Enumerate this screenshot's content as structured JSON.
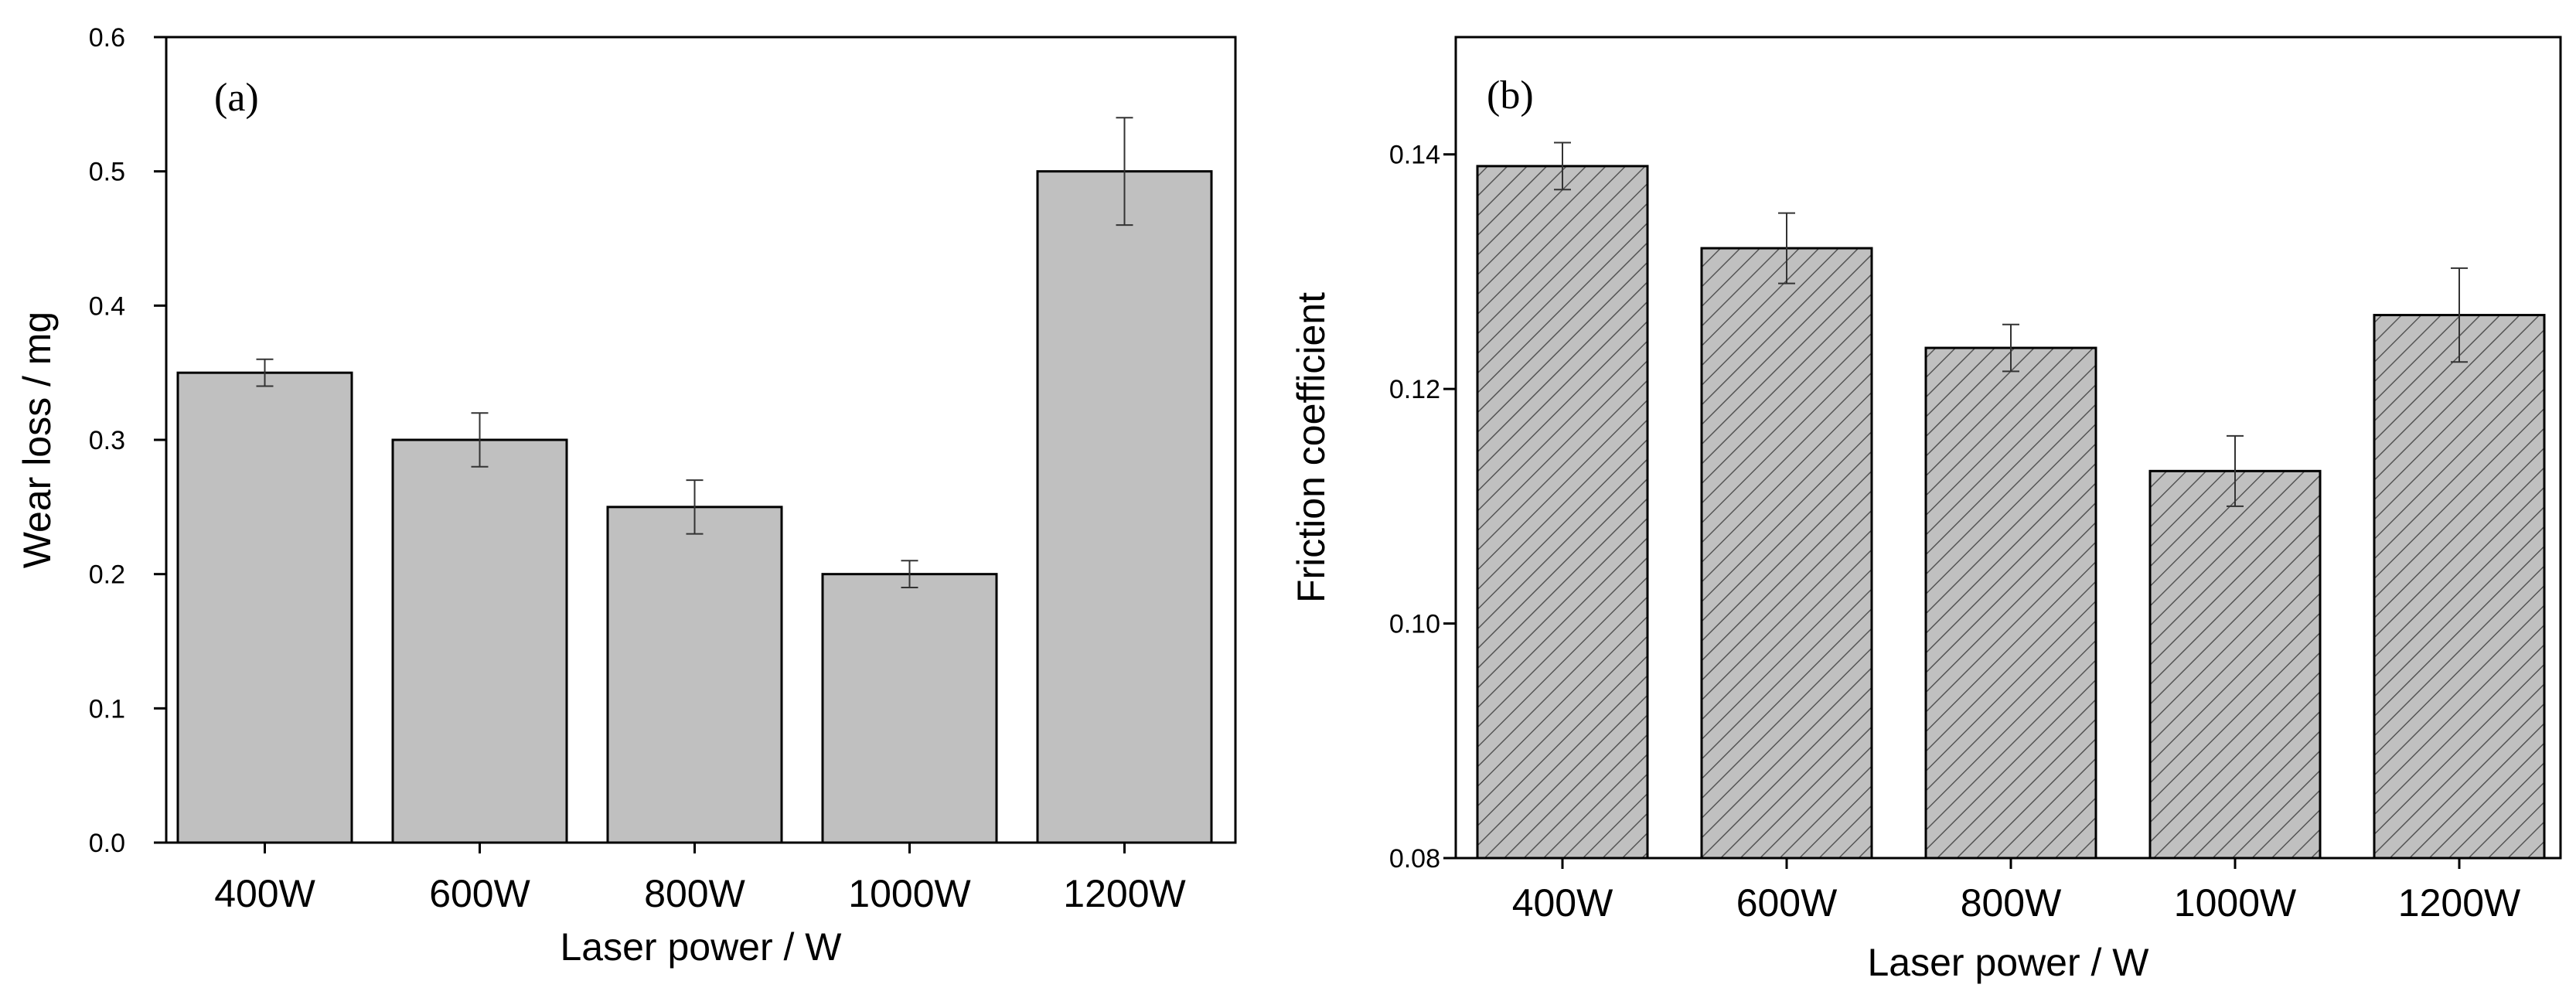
{
  "chart_data": [
    {
      "type": "bar",
      "panel_label": "(a)",
      "title": "",
      "xlabel": "Laser power / W",
      "ylabel": "Wear loss / mg",
      "categories": [
        "400W",
        "600W",
        "800W",
        "1000W",
        "1200W"
      ],
      "values": [
        0.35,
        0.3,
        0.25,
        0.2,
        0.5
      ],
      "errors": [
        0.01,
        0.02,
        0.02,
        0.01,
        0.04
      ],
      "ylim": [
        0,
        0.6
      ],
      "yticks": [
        0.0,
        0.1,
        0.2,
        0.3,
        0.4,
        0.5,
        0.6
      ],
      "ytick_labels": [
        "0.0",
        "0.1",
        "0.2",
        "0.3",
        "0.4",
        "0.5",
        "0.6"
      ],
      "bar_color": "#c0c0c0",
      "hatch": false,
      "grid": false
    },
    {
      "type": "bar",
      "panel_label": "(b)",
      "title": "",
      "xlabel": "Laser power / W",
      "ylabel": "Friction coefficient",
      "categories": [
        "400W",
        "600W",
        "800W",
        "1000W",
        "1200W"
      ],
      "values": [
        0.139,
        0.132,
        0.1235,
        0.113,
        0.1263
      ],
      "errors": [
        0.002,
        0.003,
        0.002,
        0.003,
        0.004
      ],
      "ylim": [
        0.08,
        0.15
      ],
      "yticks": [
        0.08,
        0.1,
        0.12,
        0.14
      ],
      "ytick_labels": [
        "0.08",
        "0.10",
        "0.12",
        "0.14"
      ],
      "bar_color": "#c0c0c0",
      "hatch": true,
      "grid": false
    }
  ]
}
